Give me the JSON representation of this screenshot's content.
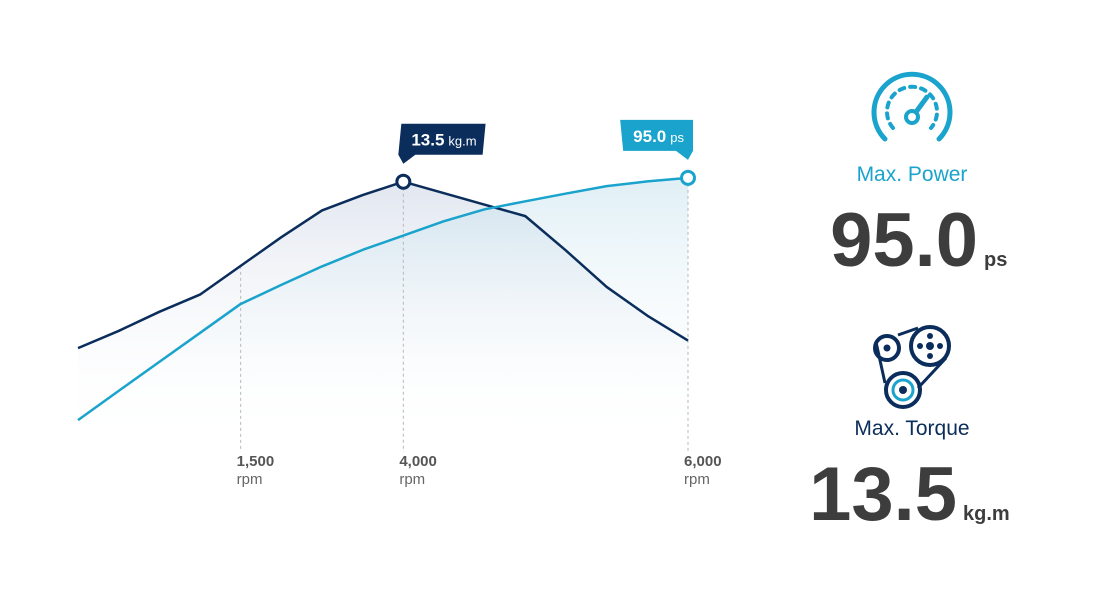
{
  "chart_data": {
    "type": "line",
    "x_unit": "rpm",
    "categories": [
      null,
      null,
      null,
      null,
      "1,500",
      null,
      null,
      null,
      "4,000",
      null,
      null,
      null,
      null,
      null,
      null,
      "6,000"
    ],
    "ylim": [
      0,
      15
    ],
    "y2lim": [
      0,
      104
    ],
    "series": [
      {
        "name": "Max. Torque",
        "unit": "kg.m",
        "color": "#0b2d5b",
        "axis": "y",
        "values": [
          4.8,
          5.7,
          6.7,
          7.6,
          9.1,
          10.6,
          12.0,
          12.8,
          13.5,
          12.9,
          12.3,
          11.7,
          9.9,
          8.0,
          6.5,
          5.2
        ],
        "value_labels": [
          null,
          null,
          null,
          null,
          null,
          null,
          null,
          null,
          "13.5",
          null,
          null,
          null,
          null,
          null,
          null,
          null
        ]
      },
      {
        "name": "Max. Power",
        "unit": "ps",
        "color": "#1aa3cc",
        "axis": "y2",
        "values": [
          7.2,
          17.8,
          28.3,
          38.8,
          49.3,
          56.2,
          62.9,
          68.9,
          74.1,
          79.3,
          83.6,
          86.5,
          89.3,
          92.0,
          93.7,
          95.0
        ],
        "value_labels": [
          null,
          null,
          null,
          null,
          null,
          null,
          null,
          null,
          null,
          null,
          null,
          null,
          null,
          null,
          null,
          "95.0"
        ]
      }
    ]
  }
}
